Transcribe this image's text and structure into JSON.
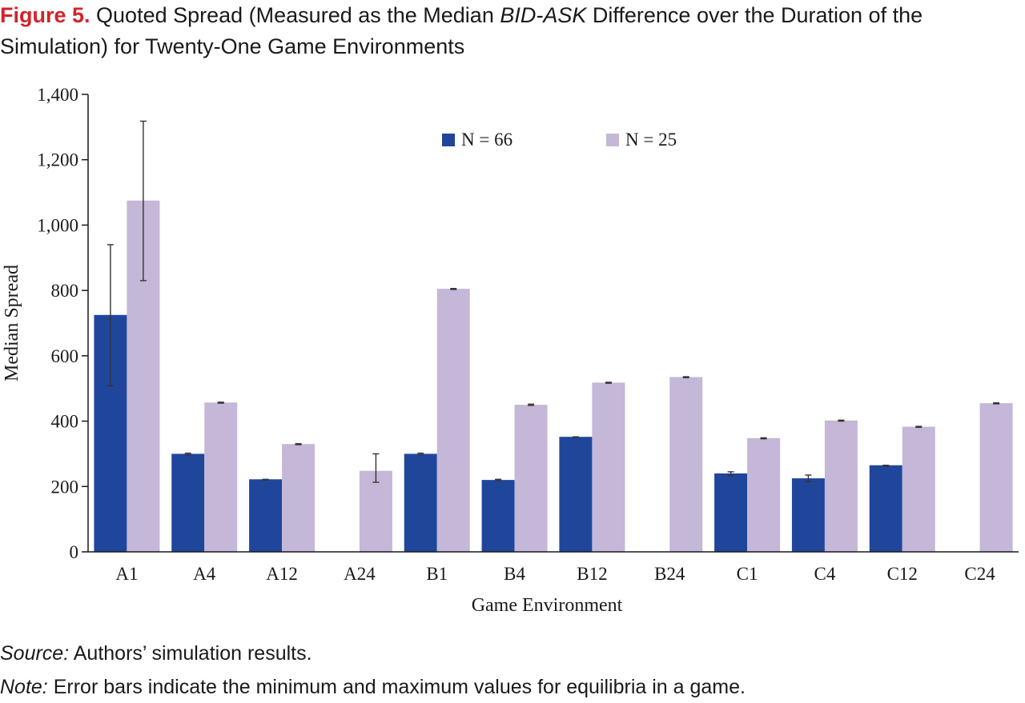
{
  "caption": {
    "label": "Figure 5.",
    "title_part1": " Quoted Spread (Measured as the Median ",
    "title_italic": "BID-ASK",
    "title_part2": " Difference over the Duration of the Simulation) for Twenty-One Game Environments"
  },
  "source": {
    "lead": "Source:",
    "text": " Authors’ simulation results."
  },
  "note": {
    "lead": "Note:",
    "text": " Error bars indicate the minimum and maximum values for equilibria in a game."
  },
  "colors": {
    "n66": "#20469c",
    "n25": "#c5b7d7",
    "axis": "#1a1a1a",
    "errorbar": "#333333"
  },
  "chart_data": {
    "type": "bar",
    "xlabel": "Game Environment",
    "ylabel": "Median Spread",
    "ylim": [
      0,
      1400
    ],
    "yticks": [
      0,
      200,
      400,
      600,
      800,
      1000,
      1200,
      1400
    ],
    "ytick_labels": [
      "0",
      "200",
      "400",
      "600",
      "800",
      "1,000",
      "1,200",
      "1,400"
    ],
    "legend_position": "top-center",
    "grid": false,
    "categories": [
      "A1",
      "A4",
      "A12",
      "A24",
      "B1",
      "B4",
      "B12",
      "B24",
      "C1",
      "C4",
      "C12",
      "C24"
    ],
    "series": [
      {
        "name": "N = 66",
        "values": [
          725,
          300,
          222,
          null,
          300,
          220,
          352,
          null,
          240,
          225,
          265,
          null
        ],
        "err_min": [
          508,
          297,
          220,
          null,
          297,
          218,
          350,
          null,
          233,
          215,
          262,
          null
        ],
        "err_max": [
          940,
          302,
          222,
          null,
          302,
          222,
          352,
          null,
          245,
          235,
          265,
          null
        ]
      },
      {
        "name": "N = 25",
        "values": [
          1075,
          457,
          330,
          248,
          805,
          450,
          518,
          535,
          348,
          402,
          383,
          455
        ],
        "err_min": [
          830,
          455,
          328,
          213,
          803,
          448,
          516,
          533,
          346,
          400,
          381,
          453
        ],
        "err_max": [
          1318,
          458,
          331,
          300,
          806,
          452,
          519,
          536,
          349,
          403,
          384,
          456
        ]
      }
    ]
  }
}
